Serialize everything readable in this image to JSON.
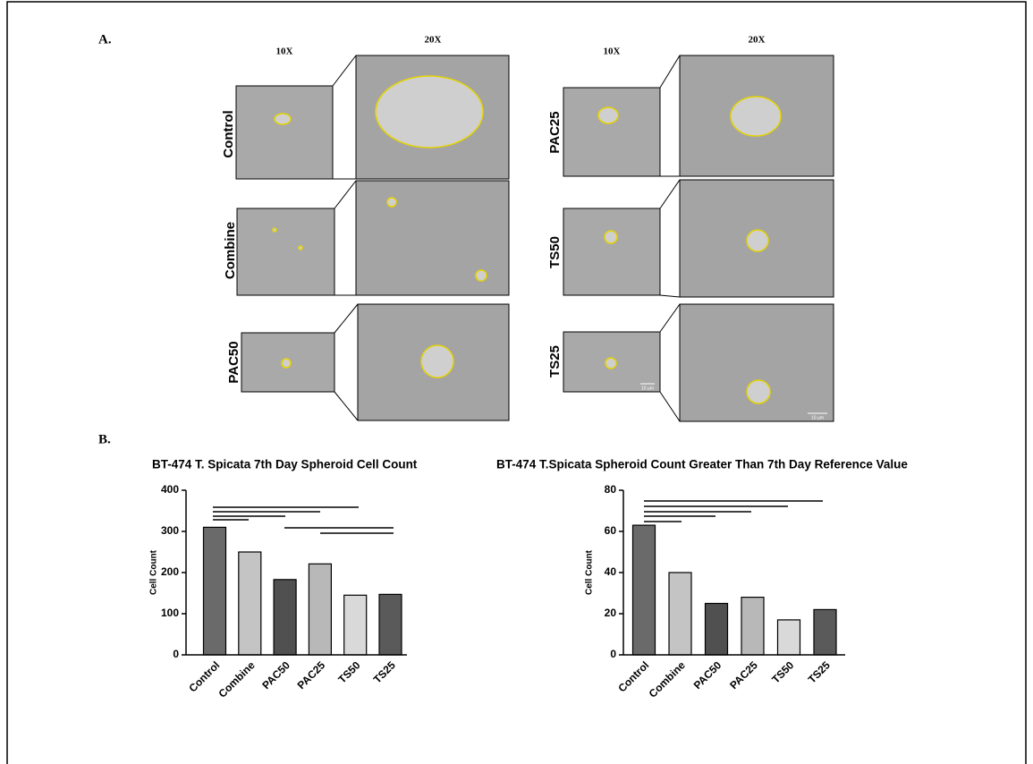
{
  "panel_a": {
    "label": "A.",
    "columns": [
      {
        "low": "10X",
        "high": "20X"
      },
      {
        "low": "10X",
        "high": "20X"
      }
    ],
    "rows": [
      "Control",
      "Combine",
      "PAC50",
      "PAC25",
      "TS50",
      "TS25"
    ],
    "scale_bars": [
      "10 μm",
      "10 μm"
    ]
  },
  "panel_b": {
    "label": "B."
  },
  "chart_data": [
    {
      "type": "bar",
      "title": "BT-474 T. Spicata 7th Day Spheroid Cell Count",
      "y_label": "Cell Count",
      "categories": [
        "Control",
        "Combine",
        "PAC50",
        "PAC25",
        "TS50",
        "TS25"
      ],
      "values": [
        310,
        250,
        183,
        221,
        145,
        147
      ],
      "colors": [
        "#6a6a6a",
        "#c4c4c4",
        "#505050",
        "#b8b8b8",
        "#d9d9d9",
        "#5a5a5a"
      ],
      "ylim": [
        0,
        400
      ],
      "yticks": [
        0,
        100,
        200,
        300,
        400
      ]
    },
    {
      "type": "bar",
      "title": "BT-474 T.Spicata Spheroid Count Greater Than 7th Day Reference Value",
      "y_label": "Cell Count",
      "categories": [
        "Control",
        "Combine",
        "PAC50",
        "PAC25",
        "TS50",
        "TS25"
      ],
      "values": [
        63,
        40,
        25,
        28,
        17,
        22
      ],
      "colors": [
        "#6a6a6a",
        "#c4c4c4",
        "#505050",
        "#b8b8b8",
        "#d9d9d9",
        "#5a5a5a"
      ],
      "ylim": [
        0,
        80
      ],
      "yticks": [
        0,
        20,
        40,
        60,
        80
      ]
    }
  ]
}
